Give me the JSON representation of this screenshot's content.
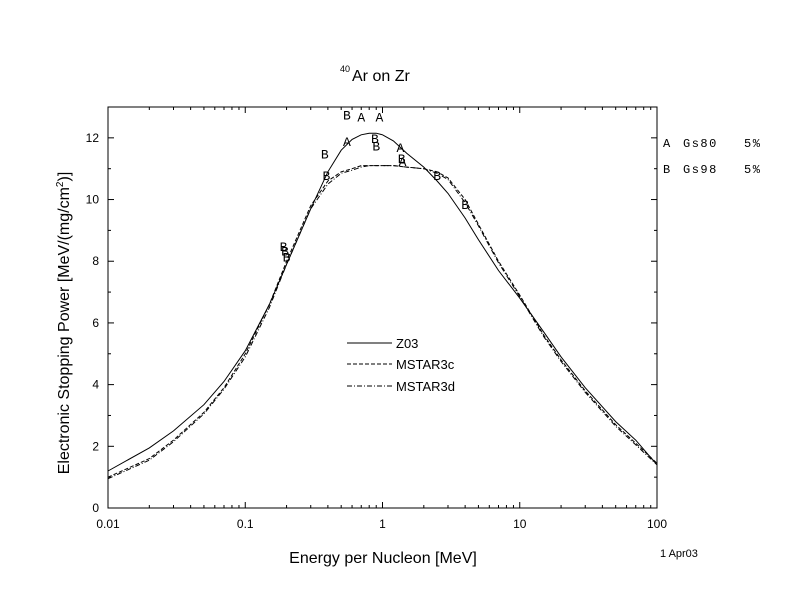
{
  "chart_data": {
    "type": "line",
    "title": {
      "superscript": "40",
      "text": "Ar on Zr"
    },
    "xlabel": "Energy per Nucleon [MeV]",
    "ylabel": {
      "main": "Electronic Stopping Power [MeV/(mg/cm",
      "sup": "2",
      "tail": ")]"
    },
    "x_scale": "log",
    "xlim": [
      0.01,
      100
    ],
    "ylim": [
      0,
      13
    ],
    "x_ticks": [
      0.01,
      0.1,
      1,
      10,
      100
    ],
    "x_tick_labels": [
      "0.01",
      "0.1",
      "1",
      "10",
      "100"
    ],
    "y_ticks": [
      0,
      2,
      4,
      6,
      8,
      10,
      12
    ],
    "y_tick_labels": [
      "0",
      "2",
      "4",
      "6",
      "8",
      "10",
      "12"
    ],
    "date_label": "1 Apr03",
    "series": [
      {
        "name": "Z03",
        "style": "solid",
        "x": [
          0.01,
          0.02,
          0.03,
          0.05,
          0.07,
          0.1,
          0.15,
          0.2,
          0.3,
          0.4,
          0.5,
          0.6,
          0.7,
          0.8,
          0.9,
          1.0,
          1.2,
          1.5,
          2.0,
          2.5,
          3,
          4,
          5,
          7,
          10,
          15,
          20,
          30,
          50,
          70,
          100
        ],
        "y": [
          1.2,
          1.95,
          2.5,
          3.35,
          4.1,
          5.1,
          6.6,
          7.9,
          9.7,
          10.9,
          11.6,
          11.95,
          12.1,
          12.15,
          12.15,
          12.1,
          11.9,
          11.5,
          11.05,
          10.6,
          10.2,
          9.4,
          8.7,
          7.7,
          6.8,
          5.7,
          4.9,
          3.9,
          2.8,
          2.2,
          1.4
        ]
      },
      {
        "name": "MSTAR3c",
        "style": "dashed",
        "x": [
          0.01,
          0.02,
          0.03,
          0.05,
          0.07,
          0.1,
          0.15,
          0.2,
          0.3,
          0.4,
          0.5,
          0.6,
          0.7,
          0.8,
          0.9,
          1.0,
          1.2,
          1.5,
          2.0,
          2.5,
          3,
          4,
          5,
          7,
          10,
          15,
          20,
          30,
          50,
          70,
          100
        ],
        "y": [
          1.0,
          1.6,
          2.2,
          3.1,
          3.9,
          5.0,
          6.6,
          8.0,
          9.8,
          10.6,
          10.9,
          11.0,
          11.1,
          11.1,
          11.1,
          11.1,
          11.1,
          11.05,
          11.0,
          10.9,
          10.7,
          10.0,
          9.2,
          8.0,
          6.9,
          5.6,
          4.8,
          3.8,
          2.7,
          2.1,
          1.45
        ]
      },
      {
        "name": "MSTAR3d",
        "style": "dashdot",
        "x": [
          0.01,
          0.02,
          0.03,
          0.05,
          0.07,
          0.1,
          0.15,
          0.2,
          0.3,
          0.4,
          0.5,
          0.6,
          0.7,
          0.8,
          0.9,
          1.0,
          1.2,
          1.5,
          2.0,
          2.5,
          3,
          4,
          5,
          7,
          10,
          15,
          20,
          30,
          50,
          70,
          100
        ],
        "y": [
          0.95,
          1.55,
          2.15,
          3.05,
          3.85,
          4.9,
          6.5,
          7.9,
          9.7,
          10.5,
          10.85,
          10.95,
          11.05,
          11.1,
          11.1,
          11.1,
          11.1,
          11.05,
          11.0,
          10.85,
          10.65,
          9.9,
          9.15,
          7.95,
          6.85,
          5.55,
          4.75,
          3.75,
          2.65,
          2.05,
          1.4
        ]
      }
    ],
    "data_points": [
      {
        "set": "A",
        "label": "Gs80",
        "error": "5%",
        "points": [
          [
            0.55,
            11.9
          ],
          [
            0.7,
            12.7
          ],
          [
            0.95,
            12.7
          ],
          [
            1.35,
            11.7
          ],
          [
            1.4,
            11.25
          ]
        ]
      },
      {
        "set": "B",
        "label": "Gs98",
        "error": "5%",
        "points": [
          [
            0.19,
            8.5
          ],
          [
            0.195,
            8.35
          ],
          [
            0.2,
            8.15
          ],
          [
            0.38,
            11.5
          ],
          [
            0.39,
            10.8
          ],
          [
            0.55,
            12.75
          ],
          [
            0.88,
            12.0
          ],
          [
            0.9,
            11.75
          ],
          [
            1.38,
            11.35
          ],
          [
            2.5,
            10.8
          ],
          [
            4.0,
            9.85
          ]
        ]
      }
    ],
    "legend": {
      "placement": "center",
      "entries": [
        "Z03",
        "MSTAR3c",
        "MSTAR3d"
      ]
    },
    "side_legend": {
      "placement": "right",
      "entries": [
        {
          "symbol": "A",
          "label": "Gs80",
          "error": "5%"
        },
        {
          "symbol": "B",
          "label": "Gs98",
          "error": "5%"
        }
      ]
    },
    "grid": false
  }
}
